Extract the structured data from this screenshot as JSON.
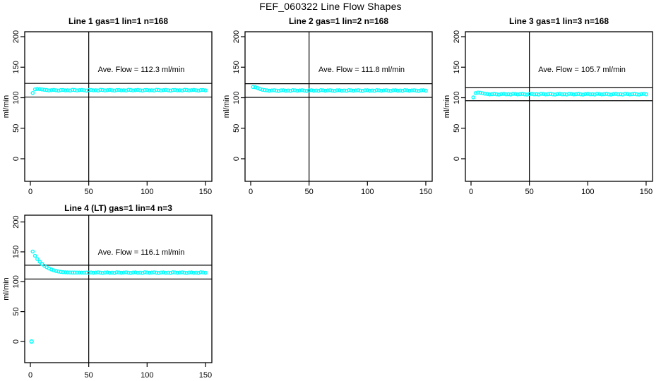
{
  "figure": {
    "title": "FEF_060322  Line Flow Shapes"
  },
  "chart_data": {
    "type": "scatter",
    "point_color": "#00ffff",
    "line_color": "#000000",
    "ylabel": "ml/min",
    "x_ticks": [
      0,
      50,
      100,
      150
    ],
    "y_ticks": [
      0,
      50,
      100,
      150,
      200
    ],
    "xlim": [
      -5,
      155
    ],
    "ylim": [
      -38,
      208
    ],
    "vline_x": 50,
    "legend": "none",
    "grid": false,
    "panels": [
      {
        "title": "Line 1 gas=1 lin=1 n=168",
        "ave_flow": 112.3,
        "ave_flow_label": "Ave. Flow =  112.3  ml/min",
        "upper_line": 123.5,
        "lower_line": 101.1,
        "x_start": 2,
        "x_step": 2,
        "y": [
          107.8,
          113.6,
          114.3,
          114.1,
          113.5,
          113.0,
          112.6,
          111.9,
          112.4,
          112.8,
          112.1,
          111.7,
          112.5,
          112.7,
          112.0,
          112.3,
          111.8,
          112.9,
          112.6,
          111.9,
          112.4,
          112.8,
          112.1,
          111.7,
          112.5,
          112.7,
          112.0,
          112.3,
          111.8,
          112.9,
          112.6,
          111.9,
          112.4,
          112.8,
          112.1,
          111.7,
          112.5,
          112.7,
          112.0,
          112.3,
          111.8,
          112.9,
          112.6,
          111.9,
          112.4,
          112.8,
          112.1,
          111.7,
          112.5,
          112.7,
          112.0,
          112.3,
          111.8,
          112.9,
          112.6,
          111.9,
          112.4,
          112.8,
          112.1,
          111.7,
          112.5,
          112.7,
          112.0,
          112.3,
          111.8,
          112.9,
          112.6,
          111.9,
          112.4,
          112.8,
          112.1,
          111.7,
          112.5,
          112.7,
          112.0
        ],
        "extra_points": []
      },
      {
        "title": "Line 2 gas=1 lin=2 n=168",
        "ave_flow": 111.8,
        "ave_flow_label": "Ave. Flow =  111.8  ml/min",
        "upper_line": 123.0,
        "lower_line": 100.6,
        "x_start": 2,
        "x_step": 2,
        "y": [
          117.6,
          117.2,
          115.8,
          114.2,
          113.1,
          112.5,
          112.1,
          111.4,
          111.9,
          112.3,
          111.6,
          111.2,
          112.0,
          112.2,
          111.5,
          111.8,
          111.3,
          112.4,
          112.1,
          111.4,
          111.9,
          112.3,
          111.6,
          111.2,
          112.0,
          112.2,
          111.5,
          111.8,
          111.3,
          112.4,
          112.1,
          111.4,
          111.9,
          112.3,
          111.6,
          111.2,
          112.0,
          112.2,
          111.5,
          111.8,
          111.3,
          112.4,
          112.1,
          111.4,
          111.9,
          112.3,
          111.6,
          111.2,
          112.0,
          112.2,
          111.5,
          111.8,
          111.3,
          112.4,
          112.1,
          111.4,
          111.9,
          112.3,
          111.6,
          111.2,
          112.0,
          112.2,
          111.5,
          111.8,
          111.3,
          112.4,
          112.1,
          111.4,
          111.9,
          112.3,
          111.6,
          111.2,
          112.0,
          112.2,
          111.5
        ],
        "extra_points": []
      },
      {
        "title": "Line 3 gas=1 lin=3 n=168",
        "ave_flow": 105.7,
        "ave_flow_label": "Ave. Flow =  105.7  ml/min",
        "upper_line": 116.3,
        "lower_line": 95.1,
        "x_start": 2,
        "x_step": 2,
        "y": [
          100.6,
          107.6,
          108.4,
          108.1,
          107.3,
          106.6,
          106.1,
          105.4,
          105.9,
          106.3,
          105.6,
          105.2,
          106.0,
          106.2,
          105.5,
          105.8,
          105.3,
          106.4,
          106.1,
          105.4,
          105.9,
          106.3,
          105.6,
          105.2,
          106.0,
          106.2,
          105.5,
          105.8,
          105.3,
          106.4,
          106.1,
          105.4,
          105.9,
          106.3,
          105.6,
          105.2,
          106.0,
          106.2,
          105.5,
          105.8,
          105.3,
          106.4,
          106.1,
          105.4,
          105.9,
          106.3,
          105.6,
          105.2,
          106.0,
          106.2,
          105.5,
          105.8,
          105.3,
          106.4,
          106.1,
          105.4,
          105.9,
          106.3,
          105.6,
          105.2,
          106.0,
          106.2,
          105.5,
          105.8,
          105.3,
          106.4,
          106.1,
          105.4,
          105.9,
          106.3,
          105.6,
          105.2,
          106.0,
          106.2,
          105.5
        ],
        "extra_points": []
      },
      {
        "title": "Line 4 (LT) gas=1 lin=4 n=3",
        "ave_flow": 116.1,
        "ave_flow_label": "Ave. Flow =  116.1  ml/min",
        "upper_line": 127.7,
        "lower_line": 104.5,
        "x_start": 2,
        "x_step": 2,
        "y": [
          150.5,
          143.5,
          137.9,
          133.5,
          129.7,
          126.7,
          124.3,
          122.2,
          120.5,
          119.0,
          117.9,
          117.1,
          116.5,
          116.1,
          115.8,
          115.6,
          115.5,
          115.4,
          115.4,
          115.3,
          115.3,
          115.2,
          115.2,
          115.3,
          115.2,
          115.5,
          115.0,
          115.3,
          115.7,
          115.1,
          114.8,
          115.4,
          115.6,
          114.9,
          115.2,
          114.7,
          115.8,
          115.5,
          115.0,
          115.3,
          115.7,
          115.1,
          114.8,
          115.4,
          115.6,
          114.9,
          115.2,
          114.7,
          115.8,
          115.5,
          115.0,
          115.3,
          115.7,
          115.1,
          114.8,
          115.4,
          115.6,
          114.9,
          115.2,
          114.7,
          115.8,
          115.5,
          115.0,
          115.3,
          115.7,
          115.1,
          114.8,
          115.4,
          115.6,
          114.9,
          115.2,
          114.7,
          115.8,
          115.5,
          115.0
        ],
        "extra_points": [
          [
            1,
            0
          ]
        ]
      }
    ]
  }
}
